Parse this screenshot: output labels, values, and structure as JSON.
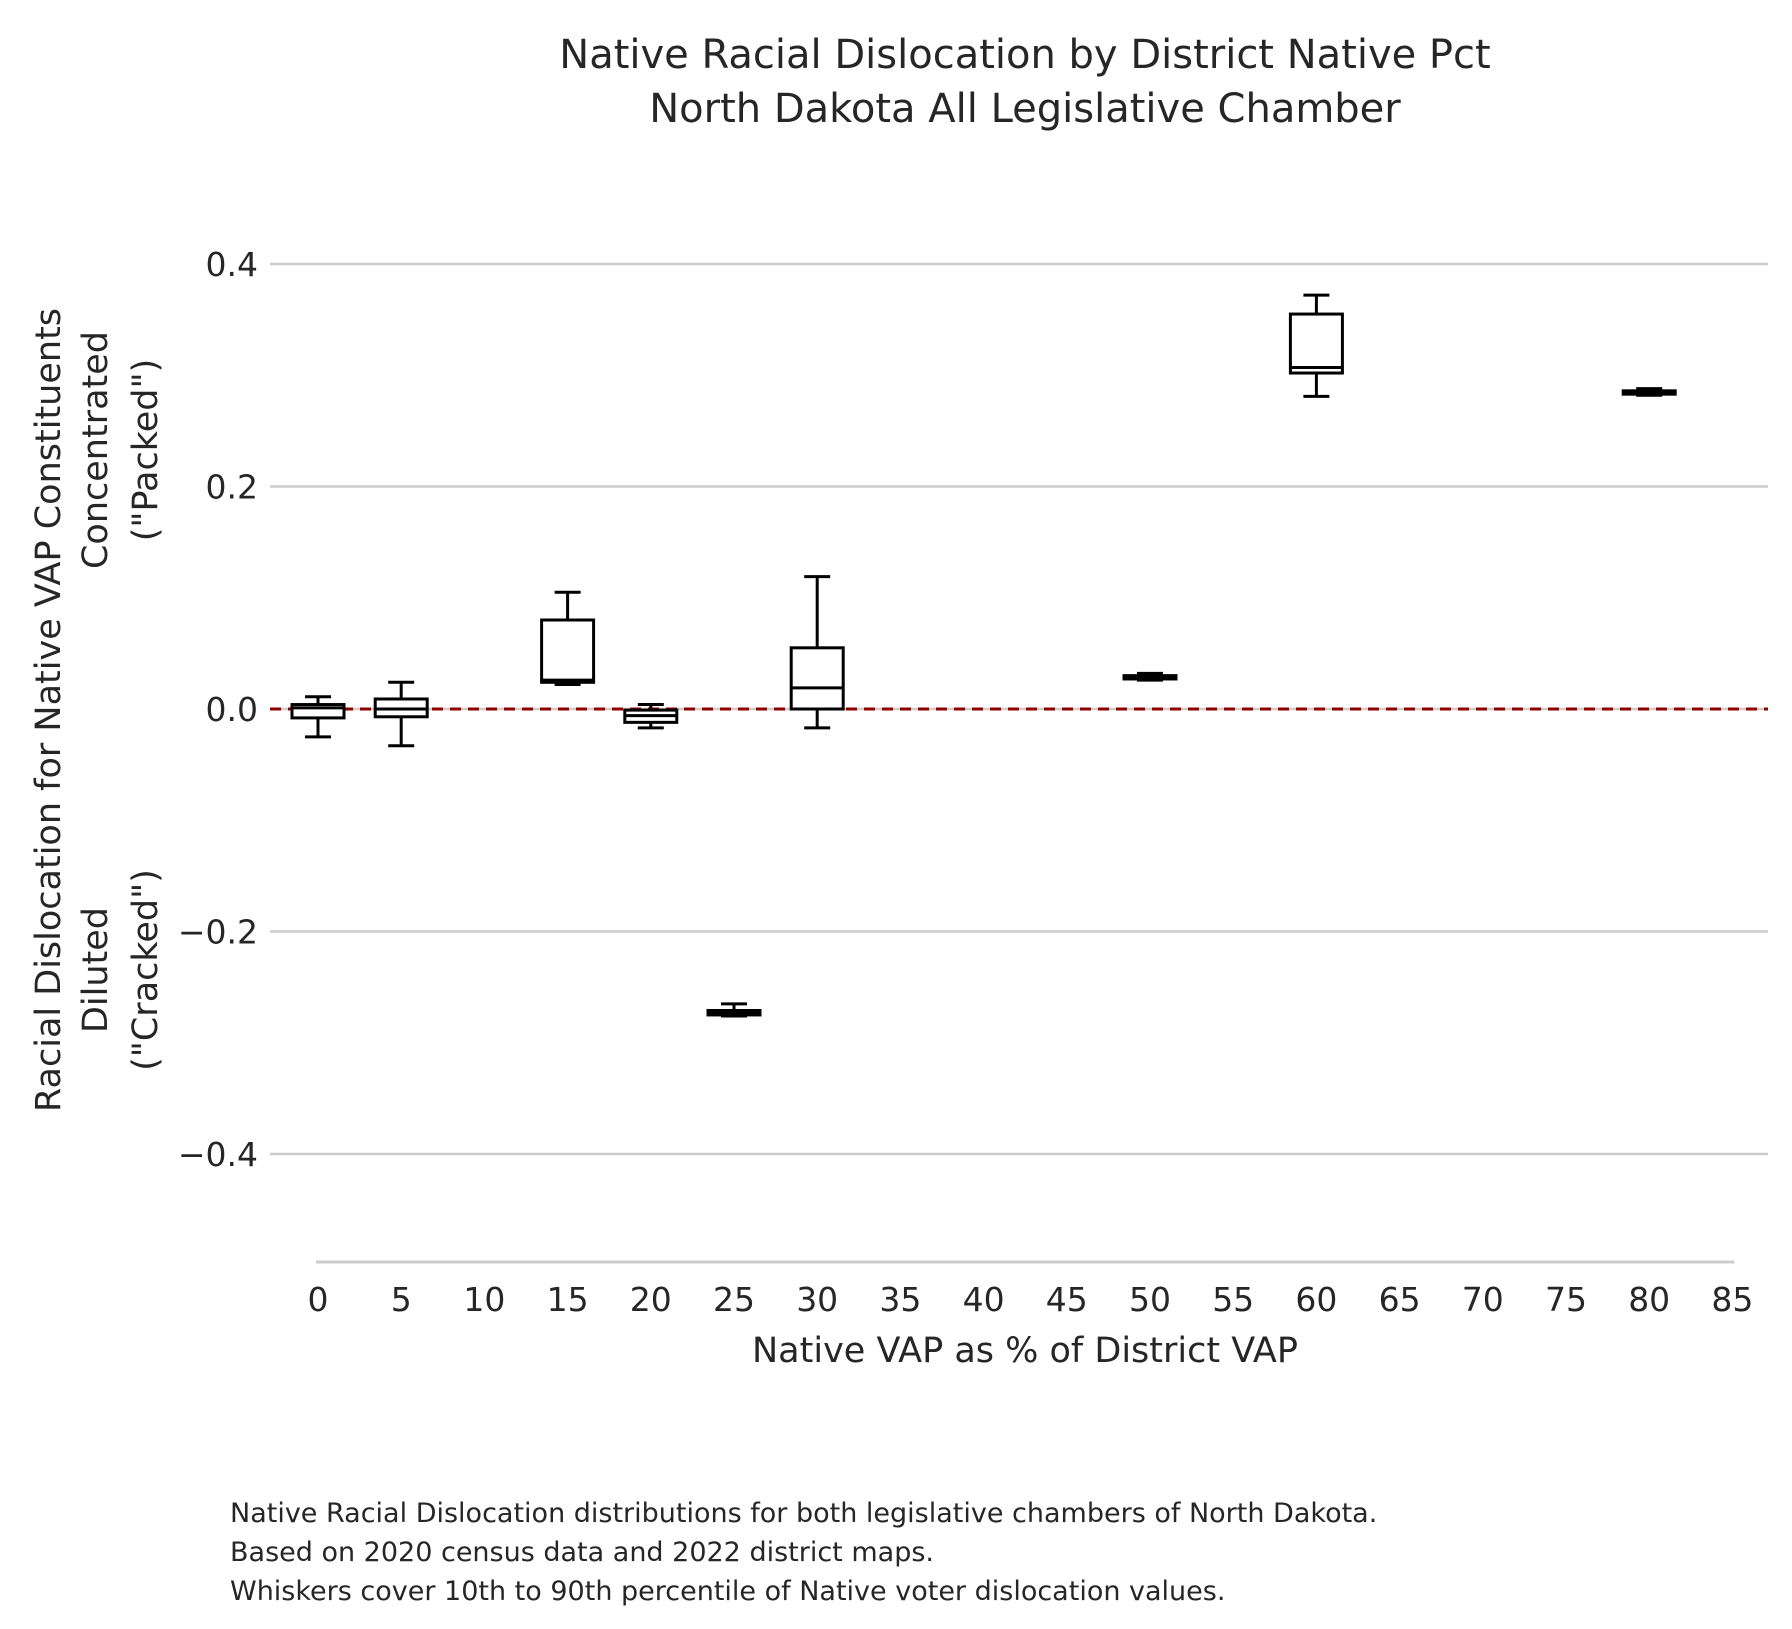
{
  "chart_data": {
    "type": "box",
    "title": [
      "Native Racial Dislocation by District Native Pct",
      "North Dakota All Legislative Chamber"
    ],
    "xlabel": "Native VAP as % of District VAP",
    "ylabel": [
      "Racial Dislocation for Native VAP Constituents",
      "Concentrated",
      "(\"Packed\")",
      "Diluted",
      "(\"Cracked\")"
    ],
    "xlim": [
      -2,
      85
    ],
    "ylim": [
      -0.5,
      0.5
    ],
    "x_ticks": [
      0,
      5,
      10,
      15,
      20,
      25,
      30,
      35,
      40,
      45,
      50,
      55,
      60,
      65,
      70,
      75,
      80,
      85
    ],
    "x_tick_labels": [
      "0",
      "5",
      "10",
      "15",
      "20",
      "25",
      "30",
      "35",
      "40",
      "45",
      "50",
      "55",
      "60",
      "65",
      "70",
      "75",
      "80",
      "85"
    ],
    "y_ticks": [
      -0.4,
      -0.2,
      0.0,
      0.2,
      0.4
    ],
    "y_tick_labels": [
      "−0.4",
      "−0.2",
      "0.0",
      "0.2",
      "0.4"
    ],
    "grid": "horizontal",
    "reference_line": {
      "y": 0.0,
      "color": "#8b0000",
      "style": "dashed"
    },
    "whiskers": "10th to 90th percentile",
    "boxes": [
      {
        "x": 0,
        "whisker_low": -0.025,
        "q1": -0.008,
        "median": 0.001,
        "q3": 0.004,
        "whisker_high": 0.011
      },
      {
        "x": 5,
        "whisker_low": -0.033,
        "q1": -0.007,
        "median": 0.0,
        "q3": 0.009,
        "whisker_high": 0.024
      },
      {
        "x": 15,
        "whisker_low": 0.022,
        "q1": 0.024,
        "median": 0.026,
        "q3": 0.08,
        "whisker_high": 0.105
      },
      {
        "x": 20,
        "whisker_low": -0.017,
        "q1": -0.012,
        "median": -0.006,
        "q3": -0.001,
        "whisker_high": 0.004
      },
      {
        "x": 25,
        "whisker_low": -0.276,
        "q1": -0.275,
        "median": -0.273,
        "q3": -0.271,
        "whisker_high": -0.265
      },
      {
        "x": 30,
        "whisker_low": -0.017,
        "q1": 0.0,
        "median": 0.019,
        "q3": 0.055,
        "whisker_high": 0.119
      },
      {
        "x": 50,
        "whisker_low": 0.026,
        "q1": 0.027,
        "median": 0.028,
        "q3": 0.03,
        "whisker_high": 0.032
      },
      {
        "x": 60,
        "whisker_low": 0.281,
        "q1": 0.302,
        "median": 0.307,
        "q3": 0.355,
        "whisker_high": 0.372
      },
      {
        "x": 80,
        "whisker_low": 0.282,
        "q1": 0.283,
        "median": 0.284,
        "q3": 0.286,
        "whisker_high": 0.288
      }
    ],
    "colors": {
      "box": "#000000",
      "grid": "#cccccc",
      "axis": "#cccccc",
      "reference": "#8b0000"
    }
  },
  "caption": [
    "Native Racial Dislocation distributions for both legislative chambers of North Dakota.",
    "Based on 2020 census data and 2022 district maps.",
    "Whiskers cover 10th to 90th percentile of Native voter dislocation values."
  ]
}
